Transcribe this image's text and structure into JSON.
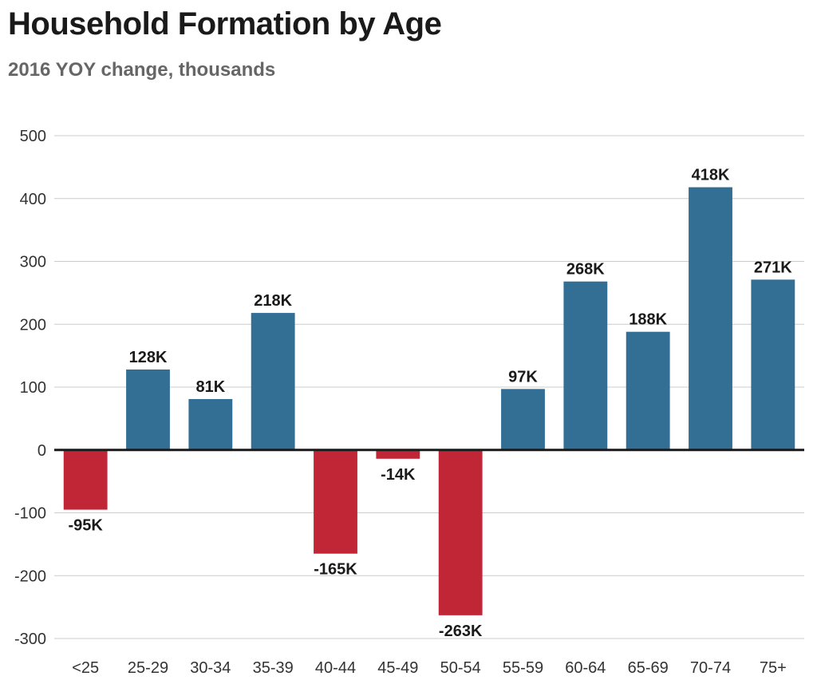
{
  "chart_data": {
    "type": "bar",
    "title": "Household Formation by Age",
    "subtitle": "2016 YOY change, thousands",
    "categories": [
      "<25",
      "25-29",
      "30-34",
      "35-39",
      "40-44",
      "45-49",
      "50-54",
      "55-59",
      "60-64",
      "65-69",
      "70-74",
      "75+"
    ],
    "values": [
      -95,
      128,
      81,
      218,
      -165,
      -14,
      -263,
      97,
      268,
      188,
      418,
      271
    ],
    "data_labels": [
      "-95K",
      "128K",
      "81K",
      "218K",
      "-165K",
      "-14K",
      "-263K",
      "97K",
      "268K",
      "188K",
      "418K",
      "271K"
    ],
    "ylim": [
      -300,
      500
    ],
    "yticks": [
      500,
      400,
      300,
      200,
      100,
      0,
      -100,
      -200,
      -300
    ],
    "grid": true,
    "colors": {
      "positive": "#336e94",
      "negative": "#c12637",
      "grid": "#cccccc",
      "axis": "#1a1a1a"
    }
  }
}
